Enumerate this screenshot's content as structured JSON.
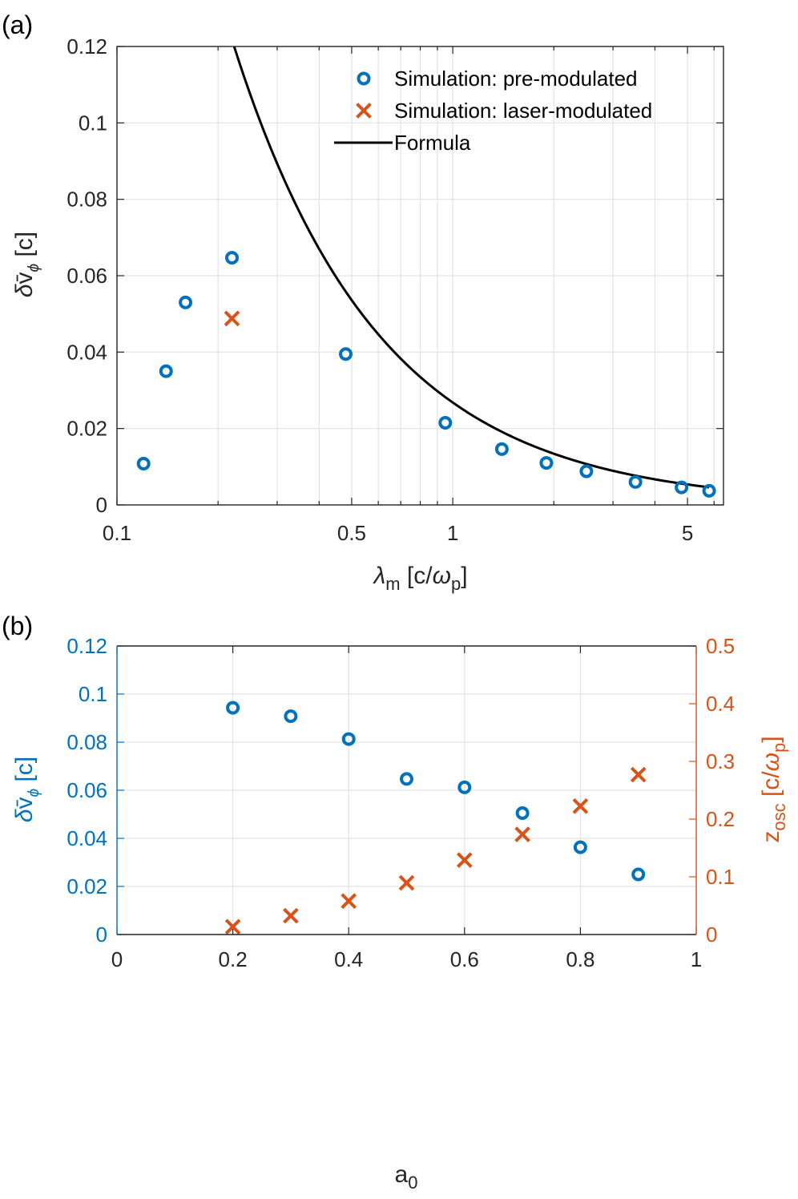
{
  "colors": {
    "blue": "#0072BD",
    "orange": "#D95319",
    "axis": "#262626",
    "formula": "#000000"
  },
  "chart_data": [
    {
      "panel_label": "(a)",
      "type": "scatter",
      "xscale": "log",
      "xlim": [
        0.1,
        6.4
      ],
      "ylim": [
        0,
        0.12
      ],
      "xticks": [
        0.1,
        0.5,
        1,
        5
      ],
      "xtick_labels": [
        "0.1",
        "0.5",
        "1",
        "5"
      ],
      "yticks": [
        0,
        0.02,
        0.04,
        0.06,
        0.08,
        0.1,
        0.12
      ],
      "ytick_labels": [
        "0",
        "0.02",
        "0.04",
        "0.06",
        "0.08",
        "0.1",
        "0.12"
      ],
      "xlabel": "λ_m [c/ω_p]",
      "ylabel": "δv̄_ϕ [c]",
      "grid": true,
      "legend_position": "top-right",
      "series": [
        {
          "name": "Simulation: pre-modulated",
          "marker": "circle",
          "color": "#0072BD",
          "x": [
            0.12,
            0.14,
            0.16,
            0.22,
            0.48,
            0.95,
            1.4,
            1.9,
            2.5,
            3.5,
            4.8,
            5.8
          ],
          "y": [
            0.0108,
            0.035,
            0.053,
            0.0647,
            0.0395,
            0.0215,
            0.0146,
            0.011,
            0.0088,
            0.006,
            0.0046,
            0.0037
          ]
        },
        {
          "name": "Simulation: laser-modulated",
          "marker": "x",
          "color": "#D95319",
          "x": [
            0.22
          ],
          "y": [
            0.0488
          ]
        },
        {
          "name": "Formula",
          "type": "line",
          "color": "#000000",
          "formula": "y = 0.0268 / x",
          "x_range": [
            0.2235,
            5.8
          ]
        }
      ]
    },
    {
      "panel_label": "(b)",
      "type": "scatter",
      "xlim": [
        0,
        1
      ],
      "ylim_left": [
        0,
        0.12
      ],
      "ylim_right": [
        0,
        0.5
      ],
      "xticks": [
        0,
        0.2,
        0.4,
        0.6,
        0.8,
        1
      ],
      "xtick_labels": [
        "0",
        "0.2",
        "0.4",
        "0.6",
        "0.8",
        "1"
      ],
      "yticks_left": [
        0,
        0.02,
        0.04,
        0.06,
        0.08,
        0.1,
        0.12
      ],
      "ytick_labels_left": [
        "0",
        "0.02",
        "0.04",
        "0.06",
        "0.08",
        "0.1",
        "0.12"
      ],
      "yticks_right": [
        0,
        0.1,
        0.2,
        0.3,
        0.4,
        0.5
      ],
      "ytick_labels_right": [
        "0",
        "0.1",
        "0.2",
        "0.3",
        "0.4",
        "0.5"
      ],
      "xlabel": "a_0",
      "ylabel_left": "δv̄_ϕ [c]",
      "ylabel_right": "z_osc [c/ω_p]",
      "grid": true,
      "series": [
        {
          "name": "δv̄_ϕ",
          "axis": "left",
          "marker": "circle",
          "color": "#0072BD",
          "x": [
            0.2,
            0.3,
            0.4,
            0.5,
            0.6,
            0.7,
            0.8,
            0.9
          ],
          "y": [
            0.0943,
            0.0908,
            0.0813,
            0.0647,
            0.0612,
            0.0505,
            0.0363,
            0.025
          ]
        },
        {
          "name": "z_osc",
          "axis": "right",
          "marker": "x",
          "color": "#D95319",
          "x": [
            0.2,
            0.3,
            0.4,
            0.5,
            0.6,
            0.7,
            0.8,
            0.9
          ],
          "y": [
            0.0135,
            0.0325,
            0.058,
            0.0895,
            0.129,
            0.1735,
            0.2225,
            0.277
          ]
        }
      ]
    }
  ]
}
